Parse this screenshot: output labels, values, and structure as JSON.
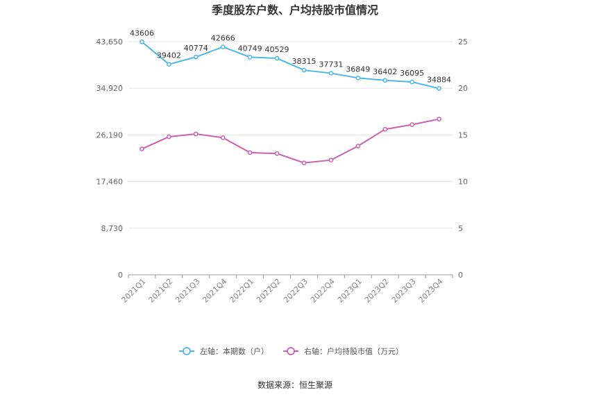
{
  "chart_data": {
    "type": "line",
    "title": "季度股东户数、户均持股市值情况",
    "categories": [
      "2021Q1",
      "2021Q2",
      "2021Q3",
      "2021Q4",
      "2022Q1",
      "2022Q2",
      "2022Q3",
      "2022Q4",
      "2023Q1",
      "2023Q2",
      "2023Q3",
      "2023Q4"
    ],
    "left_axis": {
      "ylim": [
        0,
        43650
      ],
      "ticks": [
        "0",
        "8,730",
        "17,460",
        "26,190",
        "34,920",
        "43,650"
      ],
      "tick_values": [
        0,
        8730,
        17460,
        26190,
        34920,
        43650
      ]
    },
    "right_axis": {
      "ylim": [
        0,
        25
      ],
      "ticks": [
        "0",
        "5",
        "10",
        "15",
        "20",
        "25"
      ],
      "tick_values": [
        0,
        5,
        10,
        15,
        20,
        25
      ]
    },
    "series": [
      {
        "name": "左轴：本期数（户）",
        "axis": "left",
        "color": "#4db8ea",
        "values": [
          43606,
          39402,
          40774,
          42666,
          40749,
          40529,
          38315,
          37731,
          36849,
          36402,
          36095,
          34884
        ],
        "labels": [
          "43606",
          "39402",
          "40774",
          "42666",
          "40749",
          "40529",
          "38315",
          "37731",
          "36849",
          "36402",
          "36095",
          "34884"
        ]
      },
      {
        "name": "右轴：户均持股市值（万元）",
        "axis": "right",
        "color": "#cc5fae",
        "values": [
          13.5,
          14.8,
          15.1,
          14.7,
          13.1,
          13.0,
          12.0,
          12.3,
          13.8,
          15.6,
          16.1,
          16.7
        ]
      }
    ],
    "grid": true,
    "legend_position": "bottom"
  },
  "footer": {
    "source": "数据来源：恒生聚源"
  }
}
